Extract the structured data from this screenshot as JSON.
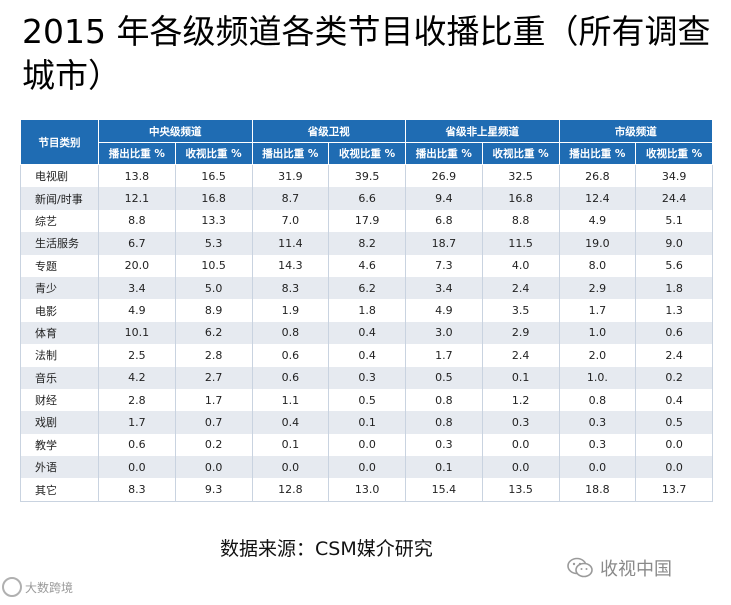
{
  "title": "2015 年各级频道各类节目收播比重（所有调查城市）",
  "table": {
    "corner_header": "节目类别",
    "groups": [
      "中央级频道",
      "省级卫视",
      "省级非上星频道",
      "市级频道"
    ],
    "sub_headers": [
      "播出比重 %",
      "收视比重 %"
    ],
    "rows": [
      {
        "cat": "电视剧",
        "vals": [
          "13.8",
          "16.5",
          "31.9",
          "39.5",
          "26.9",
          "32.5",
          "26.8",
          "34.9"
        ]
      },
      {
        "cat": "新闻/时事",
        "vals": [
          "12.1",
          "16.8",
          "8.7",
          "6.6",
          "9.4",
          "16.8",
          "12.4",
          "24.4"
        ]
      },
      {
        "cat": "综艺",
        "vals": [
          "8.8",
          "13.3",
          "7.0",
          "17.9",
          "6.8",
          "8.8",
          "4.9",
          "5.1"
        ]
      },
      {
        "cat": "生活服务",
        "vals": [
          "6.7",
          "5.3",
          "11.4",
          "8.2",
          "18.7",
          "11.5",
          "19.0",
          "9.0"
        ]
      },
      {
        "cat": "专题",
        "vals": [
          "20.0",
          "10.5",
          "14.3",
          "4.6",
          "7.3",
          "4.0",
          "8.0",
          "5.6"
        ]
      },
      {
        "cat": "青少",
        "vals": [
          "3.4",
          "5.0",
          "8.3",
          "6.2",
          "3.4",
          "2.4",
          "2.9",
          "1.8"
        ]
      },
      {
        "cat": "电影",
        "vals": [
          "4.9",
          "8.9",
          "1.9",
          "1.8",
          "4.9",
          "3.5",
          "1.7",
          "1.3"
        ]
      },
      {
        "cat": "体育",
        "vals": [
          "10.1",
          "6.2",
          "0.8",
          "0.4",
          "3.0",
          "2.9",
          "1.0",
          "0.6"
        ]
      },
      {
        "cat": "法制",
        "vals": [
          "2.5",
          "2.8",
          "0.6",
          "0.4",
          "1.7",
          "2.4",
          "2.0",
          "2.4"
        ]
      },
      {
        "cat": "音乐",
        "vals": [
          "4.2",
          "2.7",
          "0.6",
          "0.3",
          "0.5",
          "0.1",
          "1.0.",
          "0.2"
        ]
      },
      {
        "cat": "财经",
        "vals": [
          "2.8",
          "1.7",
          "1.1",
          "0.5",
          "0.8",
          "1.2",
          "0.8",
          "0.4"
        ]
      },
      {
        "cat": "戏剧",
        "vals": [
          "1.7",
          "0.7",
          "0.4",
          "0.1",
          "0.8",
          "0.3",
          "0.3",
          "0.5"
        ]
      },
      {
        "cat": "教学",
        "vals": [
          "0.6",
          "0.2",
          "0.1",
          "0.0",
          "0.3",
          "0.0",
          "0.3",
          "0.0"
        ]
      },
      {
        "cat": "外语",
        "vals": [
          "0.0",
          "0.0",
          "0.0",
          "0.0",
          "0.1",
          "0.0",
          "0.0",
          "0.0"
        ]
      },
      {
        "cat": "其它",
        "vals": [
          "8.3",
          "9.3",
          "12.8",
          "13.0",
          "15.4",
          "13.5",
          "18.8",
          "13.7"
        ]
      }
    ]
  },
  "source": "数据来源：CSM媒介研究",
  "watermark_right": "收视中国",
  "watermark_left": "大数跨境",
  "colors": {
    "header_bg": "#1f6cb3",
    "stripe": "#e6eaf0"
  }
}
